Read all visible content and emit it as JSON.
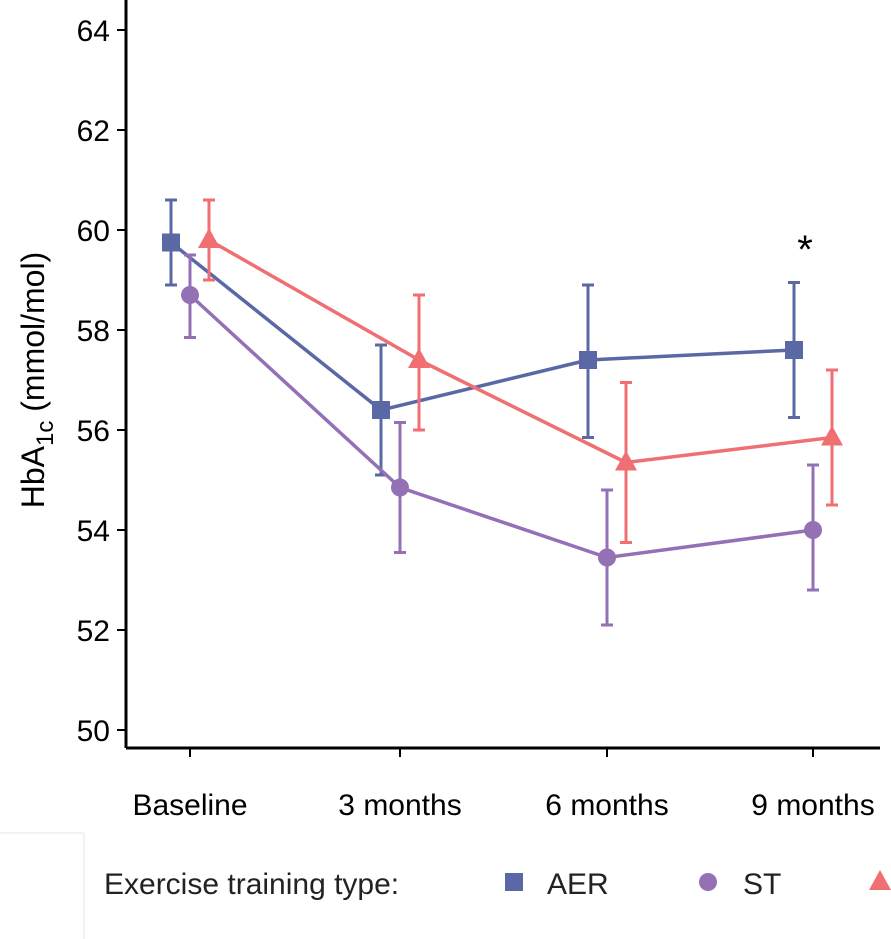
{
  "chart_data": {
    "type": "line",
    "title": "",
    "xlabel": "",
    "ylabel": {
      "main": "HbA",
      "subscript": "1c",
      "unit": " (mmol/mol)"
    },
    "categories": [
      "Baseline",
      "3 months",
      "6 months",
      "9 months"
    ],
    "ylim": [
      50,
      64
    ],
    "yticks": [
      "50",
      "52",
      "54",
      "56",
      "58",
      "60",
      "62",
      "64"
    ],
    "grid": false,
    "series": [
      {
        "name": "AER",
        "marker": "square",
        "color": "#5b68a6",
        "values": [
          59.75,
          56.4,
          57.4,
          57.6
        ],
        "err_low": [
          58.9,
          55.1,
          55.85,
          56.25
        ],
        "err_high": [
          60.6,
          57.7,
          58.9,
          58.95
        ]
      },
      {
        "name": "ST",
        "marker": "circle",
        "color": "#9470b5",
        "values": [
          58.7,
          54.85,
          53.45,
          54.0
        ],
        "err_low": [
          57.85,
          53.55,
          52.1,
          52.8
        ],
        "err_high": [
          59.5,
          56.15,
          54.8,
          55.3
        ]
      },
      {
        "name": "",
        "marker": "triangle",
        "color": "#ef6f72",
        "values": [
          59.8,
          57.4,
          55.35,
          55.85
        ],
        "err_low": [
          59.0,
          56.0,
          53.75,
          54.5
        ],
        "err_high": [
          60.6,
          58.7,
          56.95,
          57.2
        ]
      }
    ],
    "annotations": [
      {
        "text": "*",
        "category": "9 months",
        "y": 59.9
      }
    ],
    "legend": {
      "title": "Exercise training type:",
      "placement": "bottom"
    }
  }
}
